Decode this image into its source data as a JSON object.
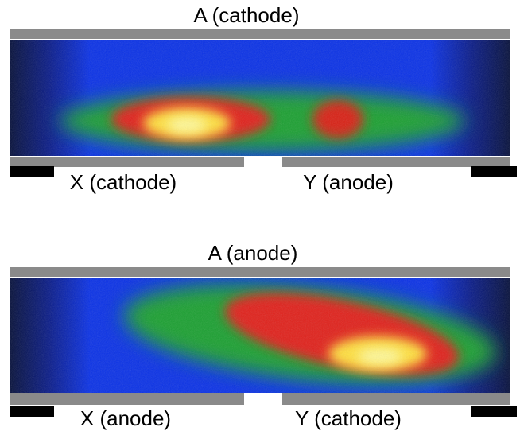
{
  "panels": [
    {
      "top_label": "A (cathode)",
      "left_label": "X (cathode)",
      "right_label": "Y (anode)"
    },
    {
      "top_label": "A (anode)",
      "left_label": "X (anode)",
      "right_label": "Y (cathode)"
    }
  ]
}
